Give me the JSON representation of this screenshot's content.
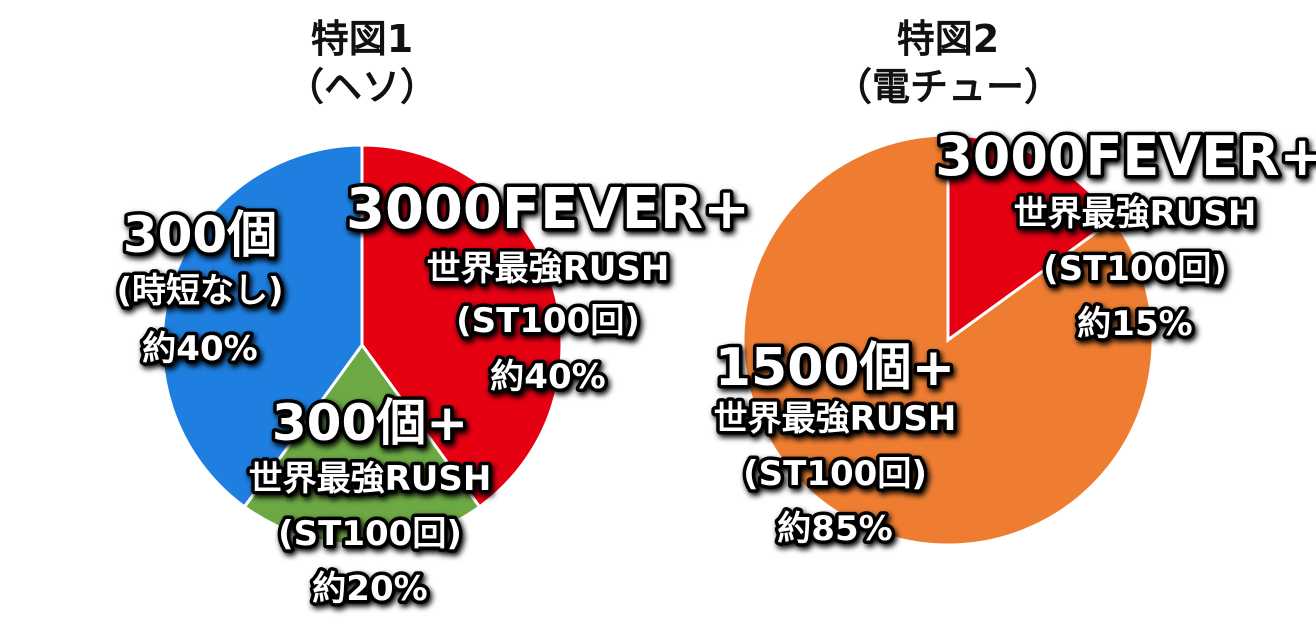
{
  "chart_data": [
    {
      "type": "pie",
      "title": "特図1",
      "subtitle": "（ヘソ）",
      "slices": [
        {
          "key": "rush3000",
          "value": 40,
          "color": "#e50012",
          "lines": [
            "3000FEVER+",
            "世界最強RUSH",
            "(ST100回)",
            "約40%"
          ]
        },
        {
          "key": "rush300",
          "value": 20,
          "color": "#6ca844",
          "lines": [
            "300個+",
            "世界最強RUSH",
            "(ST100回)",
            "約20%"
          ]
        },
        {
          "key": "jitan",
          "value": 40,
          "color": "#1e7fe0",
          "lines": [
            "300個",
            "(時短なし)",
            "約40%"
          ]
        }
      ]
    },
    {
      "type": "pie",
      "title": "特図2",
      "subtitle": "（電チュー）",
      "slices": [
        {
          "key": "rush3000",
          "value": 15,
          "color": "#e50012",
          "lines": [
            "3000FEVER+",
            "世界最強RUSH",
            "(ST100回)",
            "約15%"
          ]
        },
        {
          "key": "rush1500",
          "value": 85,
          "color": "#ee7d32",
          "lines": [
            "1500個+",
            "世界最強RUSH",
            "(ST100回)",
            "約85%"
          ]
        }
      ]
    }
  ]
}
